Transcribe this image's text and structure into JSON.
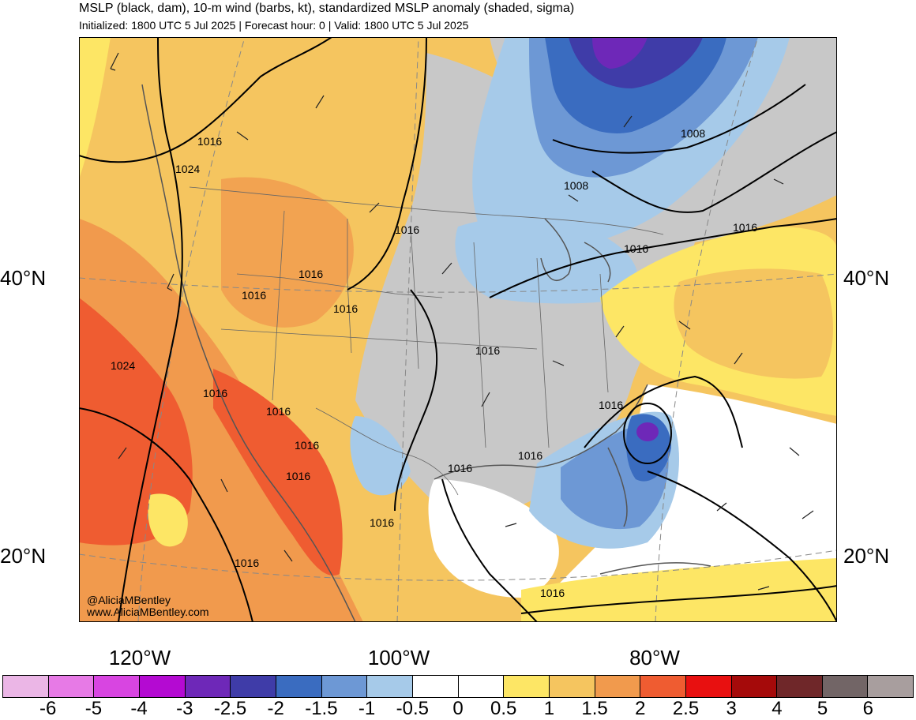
{
  "title": "MSLP (black, dam), 10-m wind (barbs, kt), standardized MSLP anomaly (shaded, sigma)",
  "subtitle": "Initialized: 1800 UTC 5 Jul 2025 | Forecast hour: 0 | Valid: 1800 UTC 5 Jul 2025",
  "lat_labels": [
    {
      "text": "40°N",
      "side": "left"
    },
    {
      "text": "40°N",
      "side": "right"
    },
    {
      "text": "20°N",
      "side": "left"
    },
    {
      "text": "20°N",
      "side": "right"
    }
  ],
  "lon_labels": [
    "120°W",
    "100°W",
    "80°W"
  ],
  "credit": {
    "handle": "@AliciaMBentley",
    "site": "www.AliciaMBentley.com"
  },
  "isobar_labels": [
    "1016",
    "1024",
    "1008",
    "1008",
    "1016",
    "1016",
    "1016",
    "1016",
    "1016",
    "1016",
    "1024",
    "1016",
    "1016",
    "1016",
    "1016",
    "1016",
    "1016",
    "1016",
    "1016",
    "1016",
    "1016",
    "1016"
  ],
  "colorbar": {
    "colors": [
      "#ebb6e6",
      "#e77ae6",
      "#d845e1",
      "#b40ad2",
      "#6e28b8",
      "#3f3ca8",
      "#3a6cc0",
      "#6d98d5",
      "#a6cae9",
      "#ffffff",
      "#ffffff",
      "#fde665",
      "#f5c55f",
      "#f19a4d",
      "#ef5c31",
      "#e81010",
      "#a50a0a",
      "#6f2729",
      "#726566",
      "#a89e9e"
    ],
    "labels": [
      "-6",
      "-5",
      "-4",
      "-3",
      "-2.5",
      "-2",
      "-1.5",
      "-1",
      "-0.5",
      "0",
      "0.5",
      "1",
      "1.5",
      "2",
      "2.5",
      "3",
      "4",
      "5",
      "6"
    ]
  }
}
